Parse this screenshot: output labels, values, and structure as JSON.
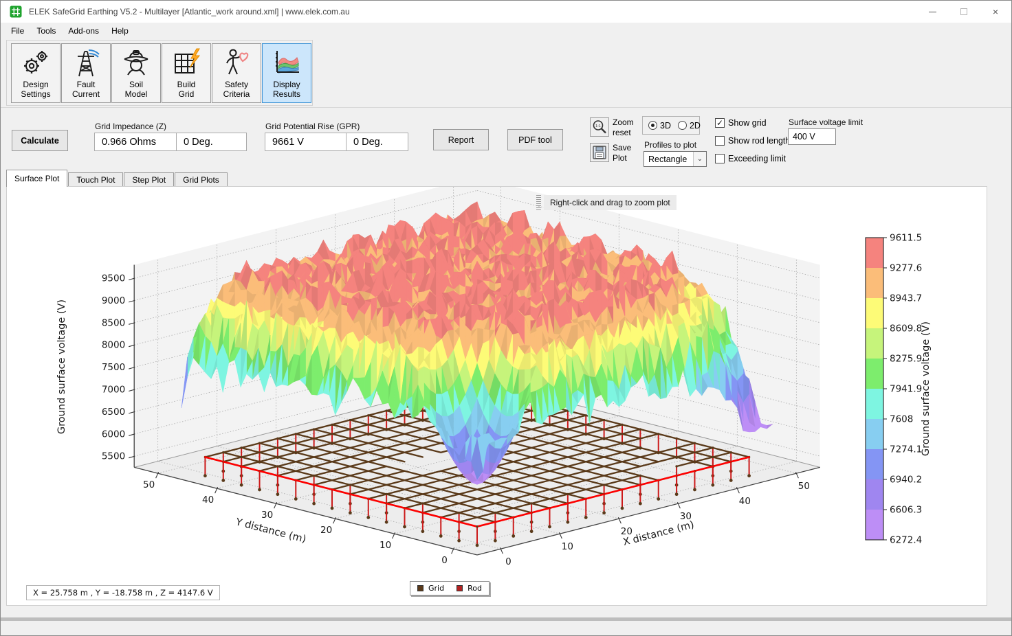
{
  "window": {
    "title": "ELEK SafeGrid Earthing V5.2 - Multilayer [Atlantic_work around.xml] | www.elek.com.au"
  },
  "menu": {
    "items": [
      "File",
      "Tools",
      "Add-ons",
      "Help"
    ]
  },
  "toolbar": {
    "active_index": 5,
    "buttons": [
      {
        "line1": "Design",
        "line2": "Settings"
      },
      {
        "line1": "Fault",
        "line2": "Current"
      },
      {
        "line1": "Soil",
        "line2": "Model"
      },
      {
        "line1": "Build",
        "line2": "Grid"
      },
      {
        "line1": "Safety",
        "line2": "Criteria"
      },
      {
        "line1": "Display",
        "line2": "Results"
      }
    ]
  },
  "controls": {
    "calculate": "Calculate",
    "grid_impedance": {
      "label": "Grid Impedance (Z)",
      "ohms": "0.966 Ohms",
      "deg": "0 Deg."
    },
    "gpr": {
      "label": "Grid Potential Rise (GPR)",
      "volts": "9661 V",
      "deg": "0 Deg."
    },
    "report": "Report",
    "pdf_tool": "PDF tool",
    "zoom_reset": {
      "line1": "Zoom",
      "line2": "reset"
    },
    "save_plot": {
      "line1": "Save",
      "line2": "Plot"
    },
    "view_radio": {
      "options": [
        "3D",
        "2D"
      ],
      "selected": "3D"
    },
    "profiles": {
      "label": "Profiles to plot",
      "value": "Rectangle"
    },
    "checkboxes": [
      {
        "label": "Show grid",
        "checked": true
      },
      {
        "label": "Show rod length",
        "checked": false
      },
      {
        "label": "Exceeding limit",
        "checked": false
      }
    ],
    "voltage_limit": {
      "label": "Surface voltage limit",
      "value": "400 V"
    }
  },
  "tabs": [
    {
      "label": "Surface Plot",
      "active": true
    },
    {
      "label": "Touch Plot",
      "active": false
    },
    {
      "label": "Step Plot",
      "active": false
    },
    {
      "label": "Grid Plots",
      "active": false
    }
  ],
  "plot": {
    "hint": "Right-click and drag to zoom plot",
    "status": "X = 25.758 m , Y = -18.758 m , Z = 4147.6 V",
    "legend": [
      {
        "label": "Grid",
        "color": "#5a3a1a"
      },
      {
        "label": "Rod",
        "color": "#b22222"
      }
    ]
  },
  "chart_data": {
    "type": "surface",
    "xlabel": "X distance (m)",
    "ylabel": "Y distance (m)",
    "zlabel": "Ground surface voltage (V)",
    "x_ticks": [
      0,
      10,
      20,
      30,
      40,
      50
    ],
    "y_ticks": [
      0,
      10,
      20,
      30,
      40,
      50
    ],
    "z_ticks": [
      5500,
      6000,
      6500,
      7000,
      7500,
      8000,
      8500,
      9000,
      9500
    ],
    "zlim_color": [
      6272.4,
      9611.5
    ],
    "colorbar": {
      "label": "Ground surface voltage (V)",
      "ticks": [
        9611.5,
        9277.6,
        8943.7,
        8609.8,
        8275.9,
        7941.9,
        7608,
        7274.1,
        6940.2,
        6606.3,
        6272.4
      ],
      "colors_top_to_bottom": [
        "#f5837e",
        "#fbbd79",
        "#fdfb77",
        "#c6f47b",
        "#7ded6d",
        "#7ef5e1",
        "#87cef1",
        "#8495f4",
        "#9f86f0",
        "#bd8ef6"
      ]
    },
    "surface_model": {
      "base": 9120,
      "ridge_amplitude": 290,
      "ridge_period": 6.571,
      "noise": 220,
      "edge_spike_noise": 260,
      "front_border": {
        "width": 7,
        "coef": 30
      },
      "back_border": {
        "width": 3.5,
        "coef": 30
      },
      "corner_right": {
        "radius": 16,
        "coef": 11
      },
      "corner_left": {
        "radius": 9,
        "coef": 3
      },
      "corner_front": {
        "radius": 12,
        "coef": 6
      },
      "funnel": {
        "x": 5,
        "y": 5,
        "floor": 6200,
        "slope": 105,
        "power": 1.6
      },
      "seed": 11
    },
    "lattice": {
      "x_min": 2,
      "x_max": 48,
      "lines": 16,
      "z": 5480,
      "rod_length": 420,
      "holes": [
        [
          14.4,
          23.6,
          23.6,
          29.8
        ],
        [
          33.5,
          39.6,
          2,
          8.1
        ],
        [
          41.9,
          48,
          11.2,
          17.3
        ]
      ],
      "color": "#5a3a1a",
      "rod_color": "#cc1a1a",
      "highlight_color": "#ff0000"
    }
  }
}
